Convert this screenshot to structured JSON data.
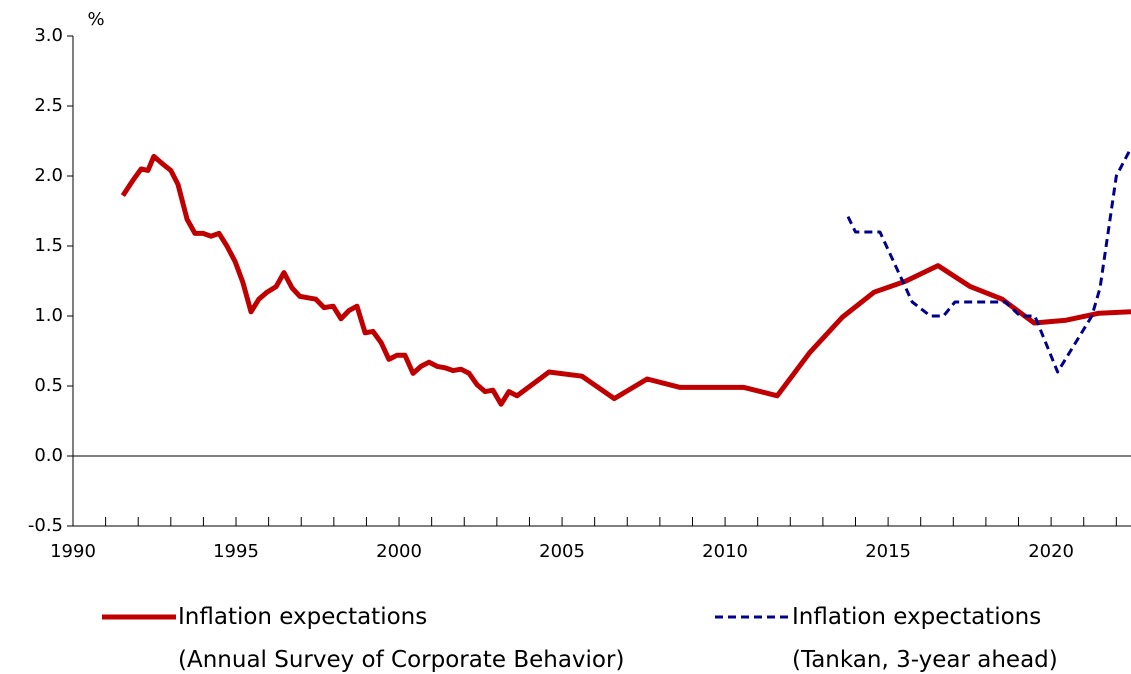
{
  "chart_data": {
    "type": "line",
    "y_label": "%",
    "xlim": [
      1990,
      2022.45
    ],
    "xticks": [
      1990,
      1995,
      2000,
      2005,
      2010,
      2015,
      2020
    ],
    "xminorticks": [
      1991,
      1992,
      1993,
      1994,
      1996,
      1997,
      1998,
      1999,
      2001,
      2002,
      2003,
      2004,
      2006,
      2007,
      2008,
      2009,
      2011,
      2012,
      2013,
      2014,
      2016,
      2017,
      2018,
      2019,
      2021,
      2022
    ],
    "ylim": [
      -0.5,
      3.0
    ],
    "yticks": [
      {
        "value": -0.5,
        "label": "-0.5"
      },
      {
        "value": 0,
        "label": "0.0"
      },
      {
        "value": 0.5,
        "label": "0.5"
      },
      {
        "value": 1,
        "label": "1.0"
      },
      {
        "value": 1.5,
        "label": "1.5"
      },
      {
        "value": 2,
        "label": "2.0"
      },
      {
        "value": 2.5,
        "label": "2.5"
      },
      {
        "value": 3,
        "label": "3.0"
      }
    ],
    "series": [
      {
        "name": "Inflation expectations\n(Annual Survey of Corporate Behavior)",
        "color": "#c00000",
        "style": "solid",
        "x": [
          1991.53,
          1991.84,
          1992.09,
          1992.3,
          1992.48,
          1992.73,
          1993.0,
          1993.22,
          1993.5,
          1993.74,
          1993.99,
          1994.23,
          1994.48,
          1994.72,
          1994.97,
          1995.21,
          1995.46,
          1995.7,
          1995.95,
          1996.23,
          1996.47,
          1996.72,
          1996.96,
          1997.21,
          1997.45,
          1997.7,
          1997.98,
          1998.22,
          1998.47,
          1998.71,
          1998.96,
          1999.2,
          1999.45,
          1999.69,
          1999.94,
          2000.18,
          2000.43,
          2000.67,
          2000.92,
          2001.17,
          2001.41,
          2001.66,
          2001.9,
          2002.15,
          2002.39,
          2002.64,
          2002.88,
          2003.13,
          2003.37,
          2003.62,
          2004.6,
          2005.61,
          2006.6,
          2007.61,
          2008.62,
          2010.58,
          2011.6,
          2012.6,
          2013.59,
          2014.57,
          2015.55,
          2016.53,
          2017.52,
          2018.5,
          2019.48,
          2020.46,
          2021.47,
          2022.45
        ],
        "values": [
          1.86,
          1.97,
          2.05,
          2.04,
          2.14,
          2.09,
          2.04,
          1.94,
          1.69,
          1.59,
          1.59,
          1.57,
          1.59,
          1.5,
          1.39,
          1.24,
          1.03,
          1.12,
          1.17,
          1.21,
          1.31,
          1.2,
          1.14,
          1.13,
          1.12,
          1.06,
          1.07,
          0.98,
          1.04,
          1.07,
          0.88,
          0.89,
          0.81,
          0.69,
          0.72,
          0.72,
          0.59,
          0.64,
          0.67,
          0.64,
          0.63,
          0.61,
          0.62,
          0.59,
          0.51,
          0.46,
          0.47,
          0.37,
          0.46,
          0.43,
          0.6,
          0.57,
          0.41,
          0.55,
          0.49,
          0.49,
          0.43,
          0.74,
          0.99,
          1.17,
          1.25,
          1.36,
          1.21,
          1.12,
          0.95,
          0.97,
          1.02,
          1.03
        ]
      },
      {
        "name": "Inflation expectations\n(Tankan, 3-year ahead)",
        "color": "#00008b",
        "style": "dashed",
        "x": [
          2013.77,
          2014.0,
          2014.75,
          2015.74,
          2016.3,
          2016.7,
          2017.05,
          2018.6,
          2019.05,
          2019.5,
          2020.2,
          2021.25,
          2021.5,
          2022.0,
          2022.45
        ],
        "values": [
          1.71,
          1.6,
          1.6,
          1.1,
          1.0,
          1.0,
          1.1,
          1.1,
          1.0,
          1.0,
          0.6,
          1.0,
          1.2,
          2.0,
          2.2
        ]
      }
    ]
  }
}
